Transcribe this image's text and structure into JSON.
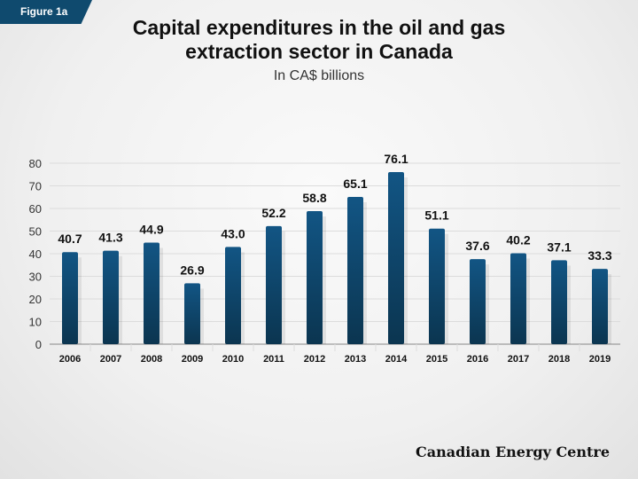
{
  "figure_label": "Figure 1a",
  "brand": "Canadian Energy Centre",
  "chart_data": {
    "type": "bar",
    "title_line1": "Capital expenditures in the oil and gas",
    "title_line2": "extraction sector in Canada",
    "subtitle": "In CA$ billions",
    "categories": [
      "2006",
      "2007",
      "2008",
      "2009",
      "2010",
      "2011",
      "2012",
      "2013",
      "2014",
      "2015",
      "2016",
      "2017",
      "2018",
      "2019"
    ],
    "values": [
      40.7,
      41.3,
      44.9,
      26.9,
      43.0,
      52.2,
      58.8,
      65.1,
      76.1,
      51.1,
      37.6,
      40.2,
      37.1,
      33.3
    ],
    "data_labels": [
      "40.7",
      "41.3",
      "44.9",
      "26.9",
      "43.0",
      "52.2",
      "58.8",
      "65.1",
      "76.1",
      "51.1",
      "37.6",
      "40.2",
      "37.1",
      "33.3"
    ],
    "ylim": [
      0,
      80
    ],
    "yticks": [
      0,
      10,
      20,
      30,
      40,
      50,
      60,
      70,
      80
    ],
    "grid": true,
    "bar_color": "#0f4a6e",
    "badge_color": "#0f4a6e"
  }
}
